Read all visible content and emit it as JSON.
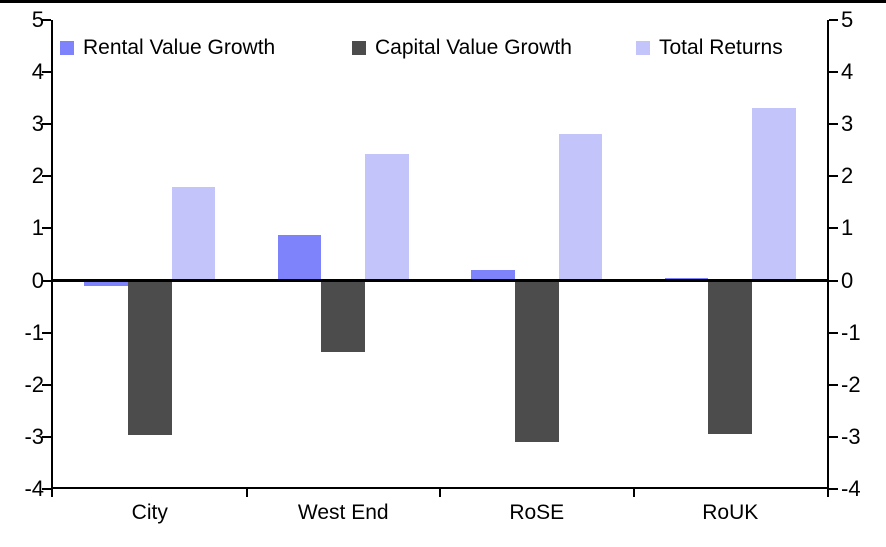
{
  "chart_data": {
    "type": "bar",
    "title": "",
    "xlabel": "",
    "ylabel": "",
    "categories": [
      "City",
      "West End",
      "RoSE",
      "RoUK"
    ],
    "series": [
      {
        "name": "Rental Value Growth",
        "color": "#7e82fb",
        "values": [
          -0.1,
          0.88,
          0.2,
          0.05
        ]
      },
      {
        "name": "Capital Value Growth",
        "color": "#4c4c4c",
        "values": [
          -2.97,
          -1.37,
          -3.1,
          -2.95
        ]
      },
      {
        "name": "Total Returns",
        "color": "#c2c4fa",
        "values": [
          1.8,
          2.43,
          2.82,
          3.32
        ]
      }
    ],
    "ylim": [
      -4,
      5
    ],
    "yticks": [
      5,
      4,
      3,
      2,
      1,
      0,
      -1,
      -2,
      -3,
      -4
    ],
    "dual_y_axis": true,
    "grid": false,
    "zero_line": true,
    "legend_position": "top",
    "axis_color": "#000000",
    "background_color": "#ffffff"
  }
}
